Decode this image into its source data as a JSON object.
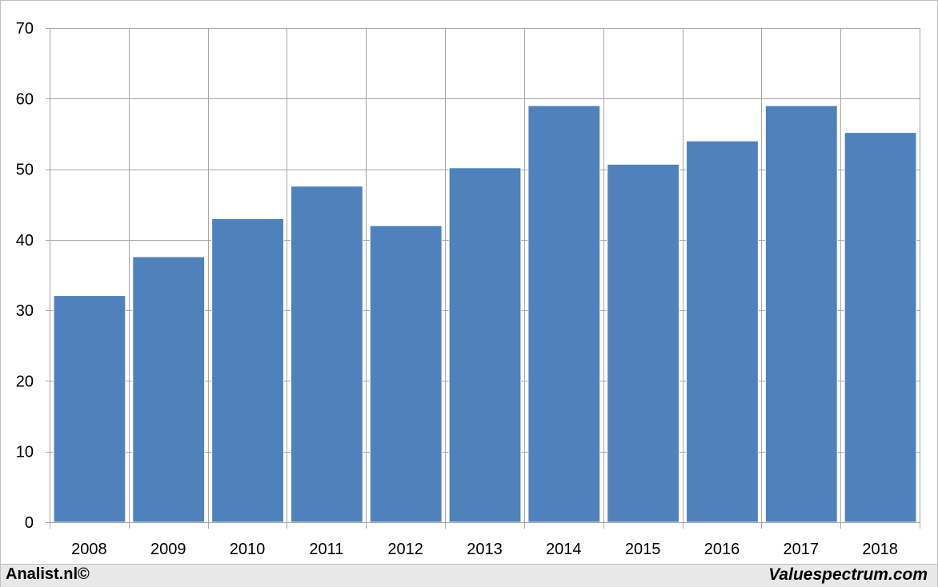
{
  "chart_data": {
    "type": "bar",
    "title": "",
    "xlabel": "",
    "ylabel": "",
    "categories": [
      "2008",
      "2009",
      "2010",
      "2011",
      "2012",
      "2013",
      "2014",
      "2015",
      "2016",
      "2017",
      "2018"
    ],
    "values": [
      32.1,
      37.6,
      43.0,
      47.6,
      42.0,
      50.2,
      59.0,
      50.7,
      54.0,
      59.0,
      55.2
    ],
    "ylim": [
      0,
      70
    ],
    "yticks": [
      0,
      10,
      20,
      30,
      40,
      50,
      60,
      70
    ],
    "grid": true,
    "legend": "none",
    "bar_color": "#4f81bd",
    "grid_color": "#a6a6a6"
  },
  "footer": {
    "left_text": "Analist.nl©",
    "right_text": "Valuespectrum.com"
  }
}
